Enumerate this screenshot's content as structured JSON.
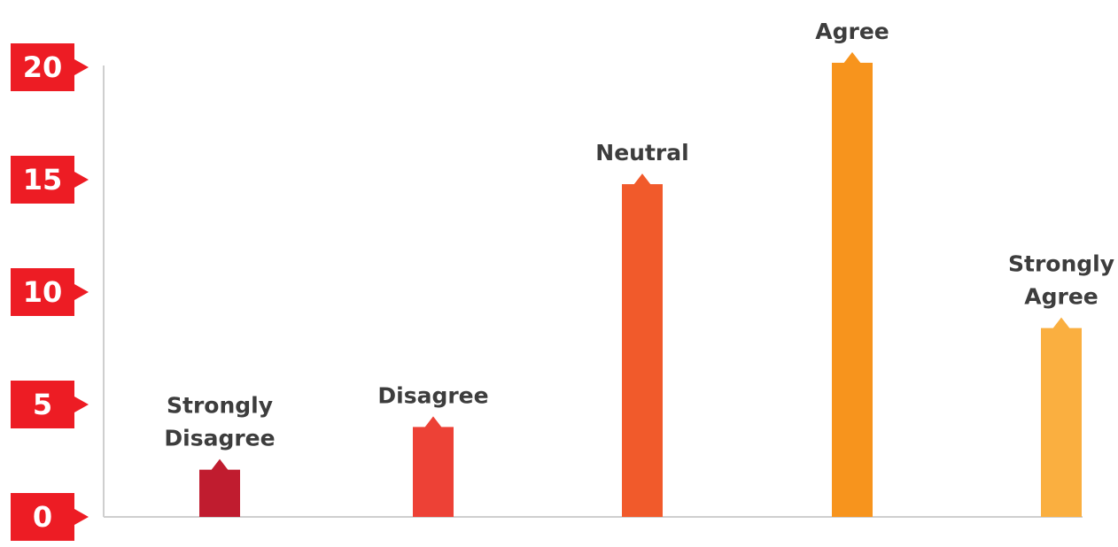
{
  "chart_data": {
    "type": "bar",
    "categories": [
      [
        "Strongly",
        "Disagree"
      ],
      [
        "Disagree"
      ],
      [
        "Neutral"
      ],
      [
        "Agree"
      ],
      [
        "Strongly",
        "Agree"
      ]
    ],
    "values": [
      2.1,
      4.0,
      14.8,
      20.2,
      8.4
    ],
    "colors": [
      "#c01c2f",
      "#ed4136",
      "#f15a2b",
      "#f7941d",
      "#faaf40"
    ],
    "ylim": [
      0,
      20
    ],
    "yticks": [
      "0",
      "5",
      "10",
      "15",
      "20"
    ],
    "tick_badge_color": "#ed1c24",
    "axis_color": "#cfcfcf",
    "grid": false
  }
}
